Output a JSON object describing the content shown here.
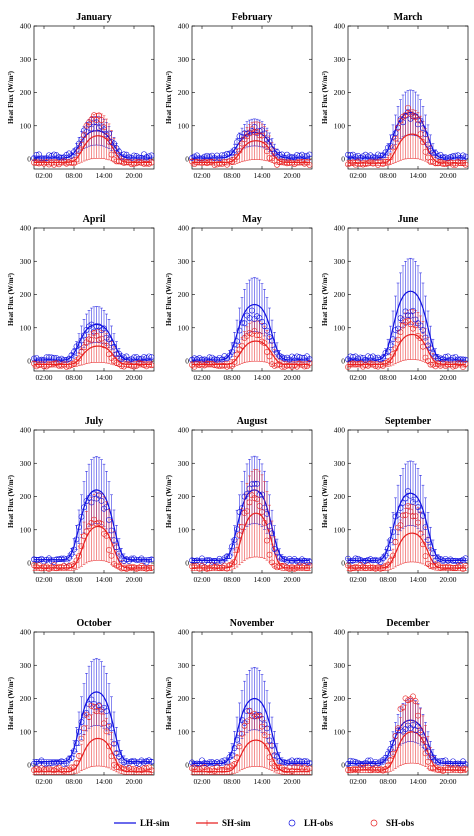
{
  "chart_data": [
    {
      "type": "line",
      "title": "January",
      "ylabel": "Heat Flux (W/m²)",
      "ylim": [
        -30,
        400
      ],
      "yticks": [
        0,
        100,
        200,
        300,
        400
      ],
      "xticks": [
        "02:00",
        "08:00",
        "14:00",
        "20:00"
      ],
      "peaks": {
        "LH-sim": 85,
        "SH-sim": 70,
        "LH-obs": 100,
        "SH-obs": 130
      },
      "night": {
        "LH-sim": 3,
        "SH-sim": -10
      }
    },
    {
      "type": "line",
      "title": "February",
      "ylabel": "Heat Flux (W/m²)",
      "ylim": [
        -30,
        400
      ],
      "yticks": [
        0,
        100,
        200,
        300,
        400
      ],
      "xticks": [
        "02:00",
        "08:00",
        "14:00",
        "20:00"
      ],
      "peaks": {
        "LH-sim": 80,
        "SH-sim": 55,
        "LH-obs": 90,
        "SH-obs": 85
      },
      "night": {
        "LH-sim": 3,
        "SH-sim": -10
      }
    },
    {
      "type": "line",
      "title": "March",
      "ylabel": "Heat Flux (W/m²)",
      "ylim": [
        -30,
        400
      ],
      "yticks": [
        0,
        100,
        200,
        300,
        400
      ],
      "xticks": [
        "02:00",
        "08:00",
        "14:00",
        "20:00"
      ],
      "peaks": {
        "LH-sim": 140,
        "SH-sim": 75,
        "LH-obs": 130,
        "SH-obs": 150
      },
      "night": {
        "LH-sim": 3,
        "SH-sim": -12
      }
    },
    {
      "type": "line",
      "title": "April",
      "ylabel": "Heat Flux (W/m²)",
      "ylim": [
        -30,
        400
      ],
      "yticks": [
        0,
        100,
        200,
        300,
        400
      ],
      "xticks": [
        "02:00",
        "08:00",
        "14:00",
        "20:00"
      ],
      "peaks": {
        "LH-sim": 110,
        "SH-sim": 45,
        "LH-obs": 100,
        "SH-obs": 75
      },
      "night": {
        "LH-sim": 3,
        "SH-sim": -10
      }
    },
    {
      "type": "line",
      "title": "May",
      "ylabel": "Heat Flux (W/m²)",
      "ylim": [
        -30,
        400
      ],
      "yticks": [
        0,
        100,
        200,
        300,
        400
      ],
      "xticks": [
        "02:00",
        "08:00",
        "14:00",
        "20:00"
      ],
      "peaks": {
        "LH-sim": 170,
        "SH-sim": 60,
        "LH-obs": 140,
        "SH-obs": 90
      },
      "night": {
        "LH-sim": 3,
        "SH-sim": -10
      }
    },
    {
      "type": "line",
      "title": "June",
      "ylabel": "Heat Flux (W/m²)",
      "ylim": [
        -30,
        400
      ],
      "yticks": [
        0,
        100,
        200,
        300,
        400
      ],
      "xticks": [
        "02:00",
        "08:00",
        "14:00",
        "20:00"
      ],
      "peaks": {
        "LH-sim": 210,
        "SH-sim": 80,
        "LH-obs": 140,
        "SH-obs": 110
      },
      "night": {
        "LH-sim": 3,
        "SH-sim": -10
      }
    },
    {
      "type": "line",
      "title": "July",
      "ylabel": "Heat Flux (W/m²)",
      "ylim": [
        -30,
        400
      ],
      "yticks": [
        0,
        100,
        200,
        300,
        400
      ],
      "xticks": [
        "02:00",
        "08:00",
        "14:00",
        "20:00"
      ],
      "peaks": {
        "LH-sim": 220,
        "SH-sim": 110,
        "LH-obs": 200,
        "SH-obs": 130
      },
      "night": {
        "LH-sim": 10,
        "SH-sim": -15
      }
    },
    {
      "type": "line",
      "title": "August",
      "ylabel": "Heat Flux (W/m²)",
      "ylim": [
        -30,
        400
      ],
      "yticks": [
        0,
        100,
        200,
        300,
        400
      ],
      "xticks": [
        "02:00",
        "08:00",
        "14:00",
        "20:00"
      ],
      "peaks": {
        "LH-sim": 220,
        "SH-sim": 150,
        "LH-obs": 230,
        "SH-obs": 190
      },
      "night": {
        "LH-sim": 8,
        "SH-sim": -15
      }
    },
    {
      "type": "line",
      "title": "September",
      "ylabel": "Heat Flux (W/m²)",
      "ylim": [
        -30,
        400
      ],
      "yticks": [
        0,
        100,
        200,
        300,
        400
      ],
      "xticks": [
        "02:00",
        "08:00",
        "14:00",
        "20:00"
      ],
      "peaks": {
        "LH-sim": 210,
        "SH-sim": 90,
        "LH-obs": 200,
        "SH-obs": 160
      },
      "night": {
        "LH-sim": 8,
        "SH-sim": -15
      }
    },
    {
      "type": "line",
      "title": "October",
      "ylabel": "Heat Flux (W/m²)",
      "ylim": [
        -30,
        400
      ],
      "yticks": [
        0,
        100,
        200,
        300,
        400
      ],
      "xticks": [
        "02:00",
        "08:00",
        "14:00",
        "20:00"
      ],
      "peaks": {
        "LH-sim": 220,
        "SH-sim": 80,
        "LH-obs": 190,
        "SH-obs": 175
      },
      "night": {
        "LH-sim": 10,
        "SH-sim": -20
      }
    },
    {
      "type": "line",
      "title": "November",
      "ylabel": "Heat Flux (W/m²)",
      "ylim": [
        -30,
        400
      ],
      "yticks": [
        0,
        100,
        200,
        300,
        400
      ],
      "xticks": [
        "02:00",
        "08:00",
        "14:00",
        "20:00"
      ],
      "peaks": {
        "LH-sim": 200,
        "SH-sim": 75,
        "LH-obs": 160,
        "SH-obs": 155
      },
      "night": {
        "LH-sim": 5,
        "SH-sim": -20
      }
    },
    {
      "type": "line",
      "title": "December",
      "ylabel": "Heat Flux (W/m²)",
      "ylim": [
        -30,
        400
      ],
      "yticks": [
        0,
        100,
        200,
        300,
        400
      ],
      "xticks": [
        "02:00",
        "08:00",
        "14:00",
        "20:00"
      ],
      "peaks": {
        "LH-sim": 135,
        "SH-sim": 100,
        "LH-obs": 120,
        "SH-obs": 200
      },
      "night": {
        "LH-sim": 5,
        "SH-sim": -15
      }
    }
  ],
  "legend": [
    {
      "name": "LH-sim",
      "color": "#1010e0",
      "marker": "line"
    },
    {
      "name": "SH-sim",
      "color": "#e82020",
      "marker": "line"
    },
    {
      "name": "LH-obs",
      "color": "#1010e0",
      "marker": "circle"
    },
    {
      "name": "SH-obs",
      "color": "#e82020",
      "marker": "circle"
    }
  ]
}
